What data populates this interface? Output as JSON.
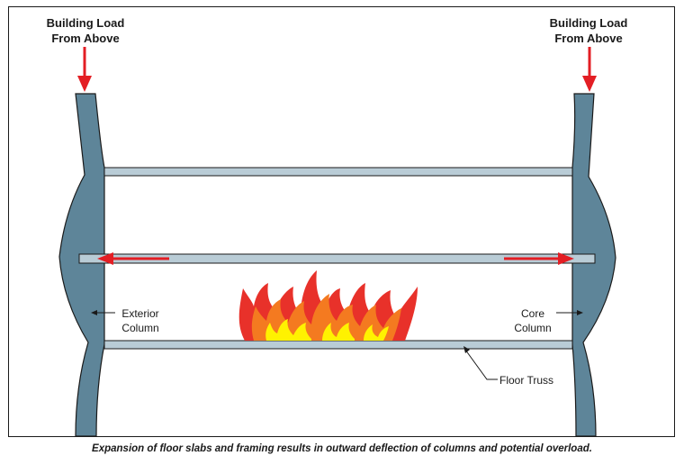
{
  "labels": {
    "load_left": [
      "Building Load",
      "From Above"
    ],
    "load_right": [
      "Building Load",
      "From Above"
    ],
    "exterior_column": [
      "Exterior",
      "Column"
    ],
    "core_column": [
      "Core",
      "Column"
    ],
    "floor_truss": "Floor Truss"
  },
  "caption": "Expansion of floor slabs and framing results in outward deflection of columns and potential overload.",
  "colors": {
    "column": "#5e8599",
    "beam": "#b9ccd6",
    "arrow": "#e31e24",
    "flame_outer": "#e8312a",
    "flame_mid": "#f47a20",
    "flame_inner": "#fff200",
    "outline": "#1a1a1a"
  }
}
